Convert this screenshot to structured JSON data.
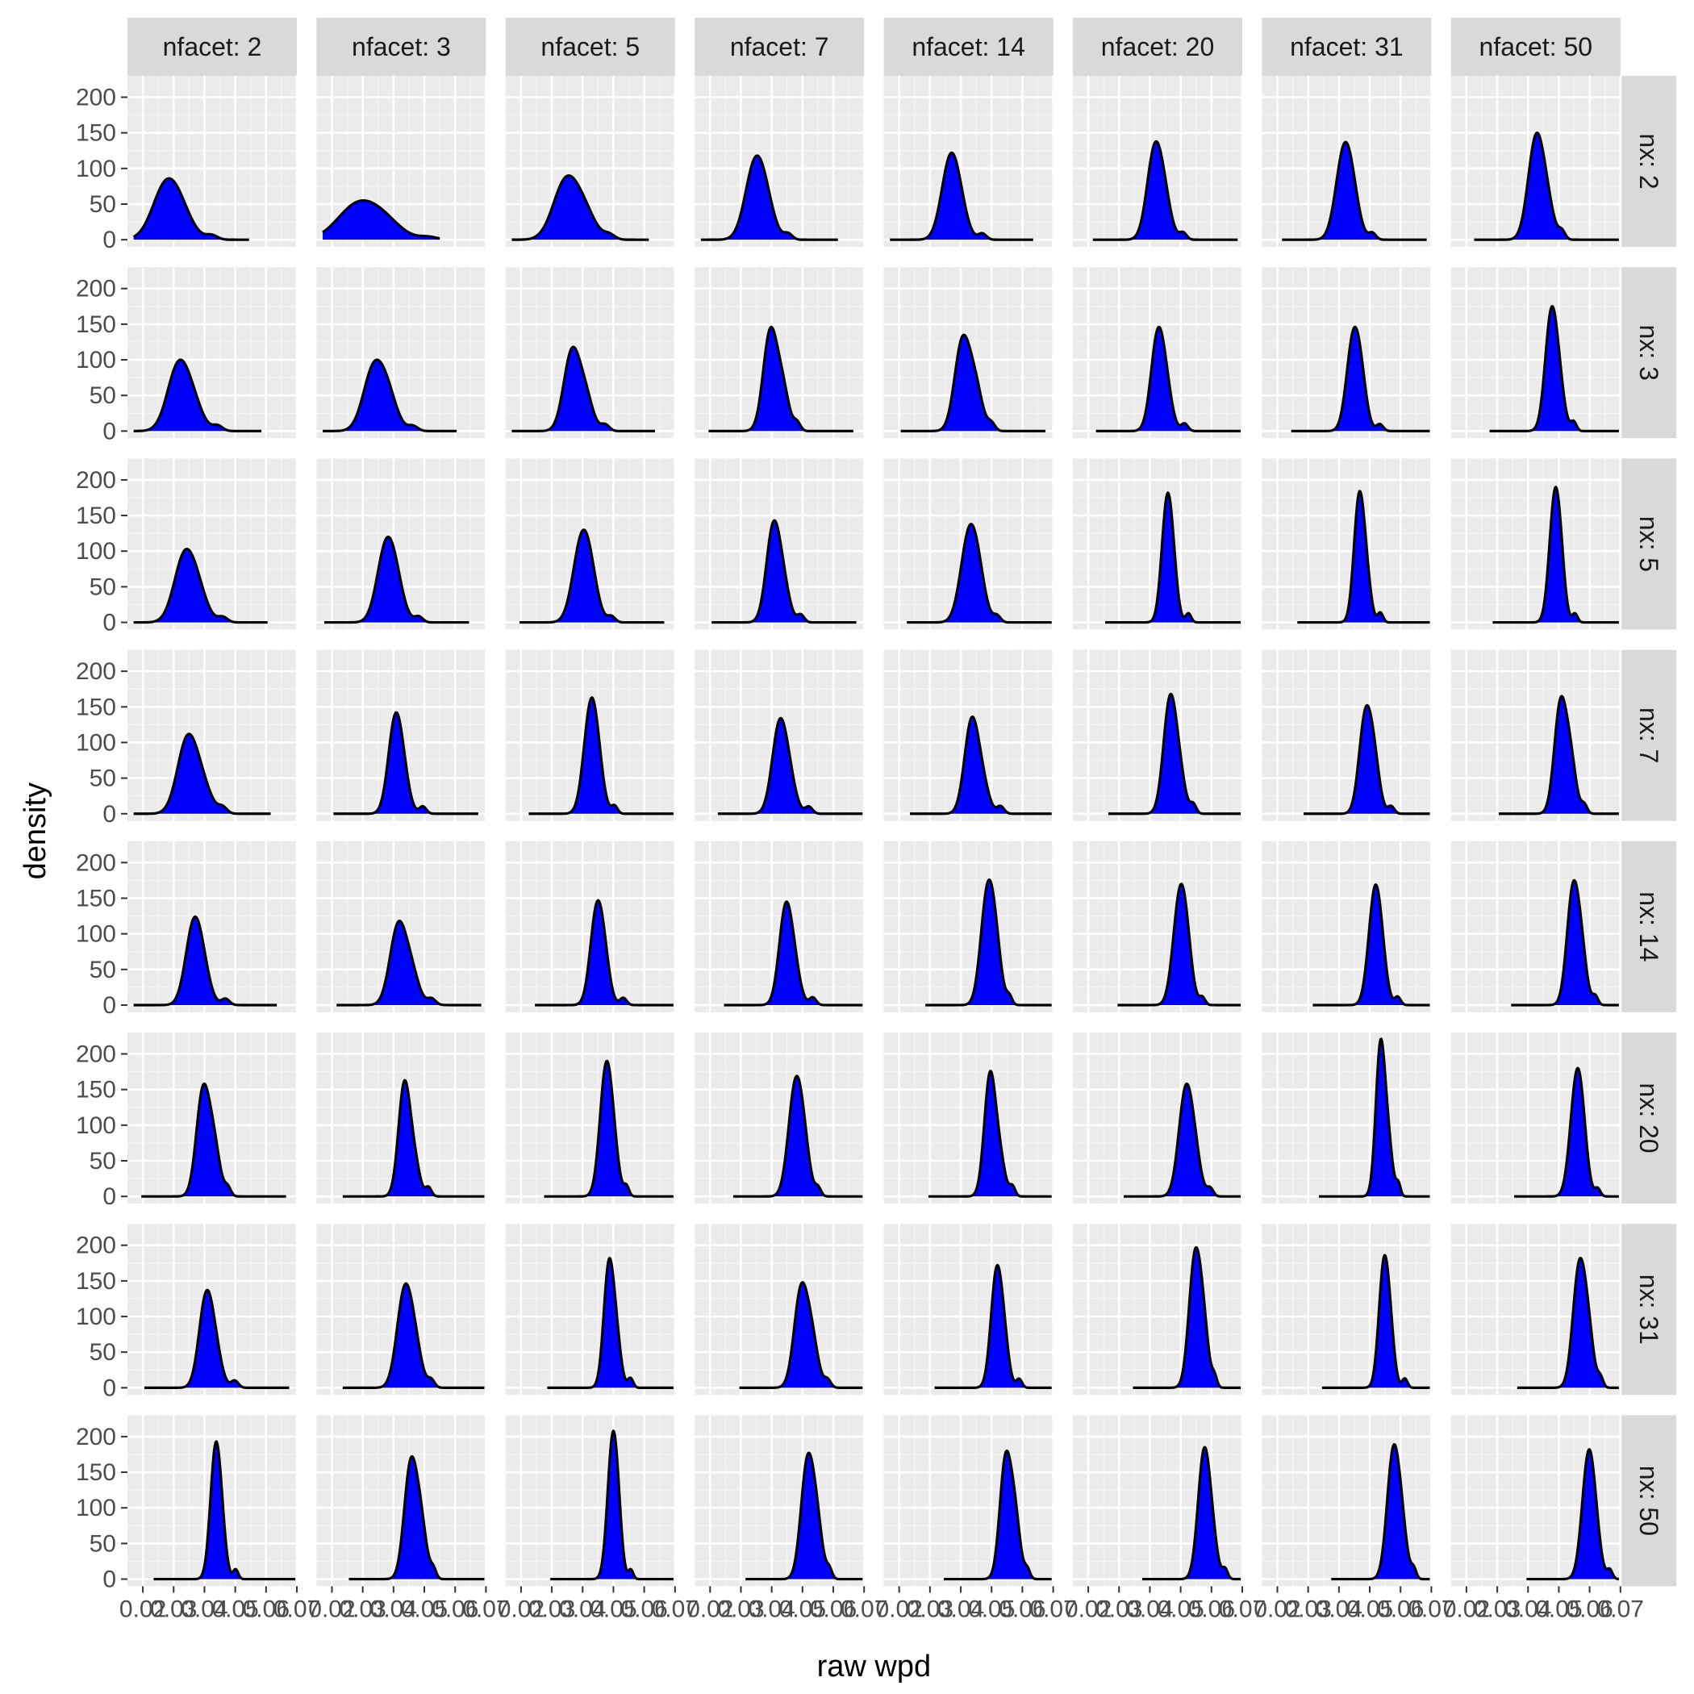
{
  "chart_data": {
    "type": "area",
    "xlabel": "raw wpd",
    "ylabel": "density",
    "xlim": [
      0.015,
      0.07
    ],
    "ylim": [
      -10,
      230
    ],
    "x_tick_values": [
      0.02,
      0.03,
      0.04,
      0.05,
      0.06,
      0.07
    ],
    "x_tick_labels": [
      "0.02",
      "0.03",
      "0.04",
      "0.05",
      "0.06",
      "0.07"
    ],
    "y_tick_values": [
      0,
      50,
      100,
      150,
      200
    ],
    "y_tick_labels": [
      "0",
      "50",
      "100",
      "150",
      "200"
    ],
    "grid": true,
    "fill_color": "#0000ff",
    "line_color": "#000000",
    "panel_background": "#ebebeb",
    "strip_background": "#d9d9d9",
    "col_facet_labels": [
      "nfacet: 2",
      "nfacet: 3",
      "nfacet: 5",
      "nfacet: 7",
      "nfacet: 14",
      "nfacet: 20",
      "nfacet: 31",
      "nfacet: 50"
    ],
    "row_facet_labels": [
      "nx: 2",
      "nx: 3",
      "nx: 5",
      "nx: 7",
      "nx: 14",
      "nx: 20",
      "nx: 31",
      "nx: 50"
    ],
    "peaks": [
      [
        [
          0.0275,
          86
        ],
        [
          0.028,
          55
        ],
        [
          0.0345,
          90
        ],
        [
          0.0345,
          118
        ],
        [
          0.0365,
          122
        ],
        [
          0.0415,
          138
        ],
        [
          0.0415,
          137
        ],
        [
          0.0425,
          150
        ]
      ],
      [
        [
          0.0315,
          100
        ],
        [
          0.0335,
          100
        ],
        [
          0.0365,
          118
        ],
        [
          0.0395,
          146
        ],
        [
          0.0405,
          135
        ],
        [
          0.0425,
          146
        ],
        [
          0.0445,
          146
        ],
        [
          0.0475,
          175
        ]
      ],
      [
        [
          0.0335,
          103
        ],
        [
          0.0375,
          120
        ],
        [
          0.0395,
          130
        ],
        [
          0.0405,
          143
        ],
        [
          0.0425,
          138
        ],
        [
          0.0455,
          182
        ],
        [
          0.0465,
          184
        ],
        [
          0.0485,
          190
        ]
      ],
      [
        [
          0.0345,
          112
        ],
        [
          0.0405,
          142
        ],
        [
          0.0425,
          163
        ],
        [
          0.0425,
          134
        ],
        [
          0.0435,
          136
        ],
        [
          0.0465,
          168
        ],
        [
          0.0485,
          152
        ],
        [
          0.0505,
          165
        ]
      ],
      [
        [
          0.0365,
          124
        ],
        [
          0.0415,
          118
        ],
        [
          0.0445,
          147
        ],
        [
          0.0445,
          145
        ],
        [
          0.0485,
          176
        ],
        [
          0.0495,
          170
        ],
        [
          0.0515,
          169
        ],
        [
          0.0545,
          175
        ]
      ],
      [
        [
          0.0395,
          158
        ],
        [
          0.0435,
          163
        ],
        [
          0.0475,
          190
        ],
        [
          0.0475,
          169
        ],
        [
          0.0495,
          176
        ],
        [
          0.0515,
          158
        ],
        [
          0.0535,
          221
        ],
        [
          0.0555,
          180
        ]
      ],
      [
        [
          0.0405,
          137
        ],
        [
          0.0435,
          146
        ],
        [
          0.0485,
          182
        ],
        [
          0.0495,
          148
        ],
        [
          0.0515,
          172
        ],
        [
          0.0545,
          197
        ],
        [
          0.0545,
          186
        ],
        [
          0.0565,
          182
        ]
      ],
      [
        [
          0.0435,
          193
        ],
        [
          0.0455,
          172
        ],
        [
          0.0495,
          208
        ],
        [
          0.0515,
          177
        ],
        [
          0.0545,
          180
        ],
        [
          0.0575,
          185
        ],
        [
          0.0575,
          189
        ],
        [
          0.0595,
          182
        ]
      ]
    ]
  }
}
